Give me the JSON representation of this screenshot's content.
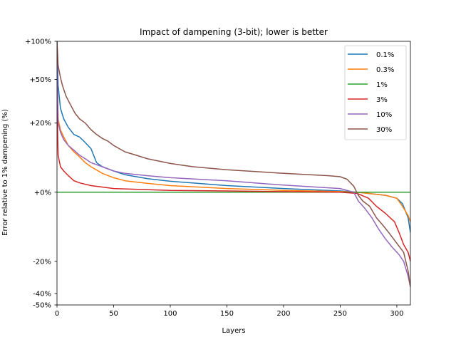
{
  "chart_data": {
    "type": "line",
    "title": "Impact of dampening (3-bit); lower is better",
    "xlabel": "Layers",
    "ylabel": "Error relative to 1% dampening (%)",
    "xlim": [
      0,
      312
    ],
    "ylim": [
      -50,
      100
    ],
    "y_scale": "symlog",
    "x_ticks": [
      0,
      50,
      100,
      150,
      200,
      250,
      300
    ],
    "y_ticks": [
      {
        "value": 100,
        "label": "+100%"
      },
      {
        "value": 50,
        "label": "+50%"
      },
      {
        "value": 20,
        "label": "+20%"
      },
      {
        "value": 0,
        "label": "+0%"
      },
      {
        "value": -20,
        "label": "-20%"
      },
      {
        "value": -40,
        "label": "-40%"
      },
      {
        "value": -50,
        "label": "-50%"
      }
    ],
    "grid": false,
    "legend_position": "top-right",
    "series": [
      {
        "name": "0.1%",
        "color": "#1f77b4",
        "points": [
          [
            0,
            100
          ],
          [
            1,
            45
          ],
          [
            3,
            28
          ],
          [
            6,
            22
          ],
          [
            10,
            18
          ],
          [
            15,
            15
          ],
          [
            20,
            14
          ],
          [
            25,
            12
          ],
          [
            30,
            10
          ],
          [
            35,
            6
          ],
          [
            40,
            5
          ],
          [
            50,
            4
          ],
          [
            60,
            3.2
          ],
          [
            80,
            2.4
          ],
          [
            100,
            1.9
          ],
          [
            150,
            1.1
          ],
          [
            200,
            0.6
          ],
          [
            250,
            0.2
          ],
          [
            265,
            0
          ],
          [
            290,
            -0.5
          ],
          [
            300,
            -1
          ],
          [
            305,
            -2
          ],
          [
            310,
            -5
          ],
          [
            312,
            -9
          ]
        ]
      },
      {
        "name": "0.3%",
        "color": "#ff7f0e",
        "points": [
          [
            0,
            55
          ],
          [
            1,
            22
          ],
          [
            3,
            17
          ],
          [
            6,
            14
          ],
          [
            10,
            11
          ],
          [
            15,
            9
          ],
          [
            20,
            7.5
          ],
          [
            25,
            6
          ],
          [
            30,
            5
          ],
          [
            40,
            3.5
          ],
          [
            50,
            2.6
          ],
          [
            60,
            2
          ],
          [
            80,
            1.5
          ],
          [
            100,
            1.1
          ],
          [
            150,
            0.6
          ],
          [
            200,
            0.3
          ],
          [
            250,
            0.1
          ],
          [
            265,
            0
          ],
          [
            290,
            -0.5
          ],
          [
            300,
            -1
          ],
          [
            305,
            -2.5
          ],
          [
            310,
            -4.5
          ],
          [
            312,
            -6
          ]
        ]
      },
      {
        "name": "1%",
        "color": "#2ca02c",
        "points": [
          [
            0,
            0
          ],
          [
            312,
            0
          ]
        ]
      },
      {
        "name": "3%",
        "color": "#d62728",
        "points": [
          [
            0,
            30
          ],
          [
            1,
            8
          ],
          [
            3,
            5
          ],
          [
            6,
            4
          ],
          [
            10,
            3
          ],
          [
            15,
            2
          ],
          [
            20,
            1.6
          ],
          [
            30,
            1.1
          ],
          [
            50,
            0.6
          ],
          [
            100,
            0.3
          ],
          [
            150,
            0.2
          ],
          [
            200,
            0.1
          ],
          [
            250,
            0
          ],
          [
            265,
            -0.2
          ],
          [
            275,
            -1
          ],
          [
            282,
            -2.5
          ],
          [
            290,
            -4
          ],
          [
            298,
            -6
          ],
          [
            302,
            -9
          ],
          [
            306,
            -13
          ],
          [
            310,
            -16
          ],
          [
            312,
            -20
          ]
        ]
      },
      {
        "name": "10%",
        "color": "#9467bd",
        "points": [
          [
            0,
            85
          ],
          [
            1,
            20
          ],
          [
            3,
            16
          ],
          [
            6,
            13
          ],
          [
            10,
            11
          ],
          [
            15,
            9.5
          ],
          [
            20,
            8
          ],
          [
            25,
            7
          ],
          [
            30,
            6
          ],
          [
            40,
            5
          ],
          [
            50,
            4
          ],
          [
            60,
            3.5
          ],
          [
            80,
            3
          ],
          [
            100,
            2.6
          ],
          [
            150,
            2
          ],
          [
            200,
            1.2
          ],
          [
            250,
            0.6
          ],
          [
            262,
            0
          ],
          [
            266,
            -1.5
          ],
          [
            272,
            -3
          ],
          [
            278,
            -5
          ],
          [
            284,
            -8
          ],
          [
            290,
            -11
          ],
          [
            296,
            -14
          ],
          [
            302,
            -17
          ],
          [
            306,
            -20
          ],
          [
            310,
            -28
          ],
          [
            312,
            -35
          ]
        ]
      },
      {
        "name": "30%",
        "color": "#8c564b",
        "points": [
          [
            0,
            100
          ],
          [
            1,
            65
          ],
          [
            3,
            52
          ],
          [
            5,
            44
          ],
          [
            8,
            36
          ],
          [
            12,
            30
          ],
          [
            16,
            25
          ],
          [
            20,
            22
          ],
          [
            25,
            20
          ],
          [
            30,
            17
          ],
          [
            35,
            15
          ],
          [
            40,
            13.5
          ],
          [
            45,
            12.5
          ],
          [
            50,
            11
          ],
          [
            60,
            9
          ],
          [
            70,
            8
          ],
          [
            80,
            7
          ],
          [
            100,
            5.8
          ],
          [
            120,
            5
          ],
          [
            150,
            4.3
          ],
          [
            200,
            3.5
          ],
          [
            240,
            3
          ],
          [
            250,
            2.8
          ],
          [
            256,
            2.3
          ],
          [
            262,
            1
          ],
          [
            266,
            -0.5
          ],
          [
            270,
            -1.5
          ],
          [
            276,
            -2.5
          ],
          [
            282,
            -5
          ],
          [
            288,
            -7
          ],
          [
            294,
            -9.5
          ],
          [
            300,
            -12.5
          ],
          [
            306,
            -16
          ],
          [
            310,
            -25
          ],
          [
            312,
            -35
          ]
        ]
      }
    ]
  }
}
